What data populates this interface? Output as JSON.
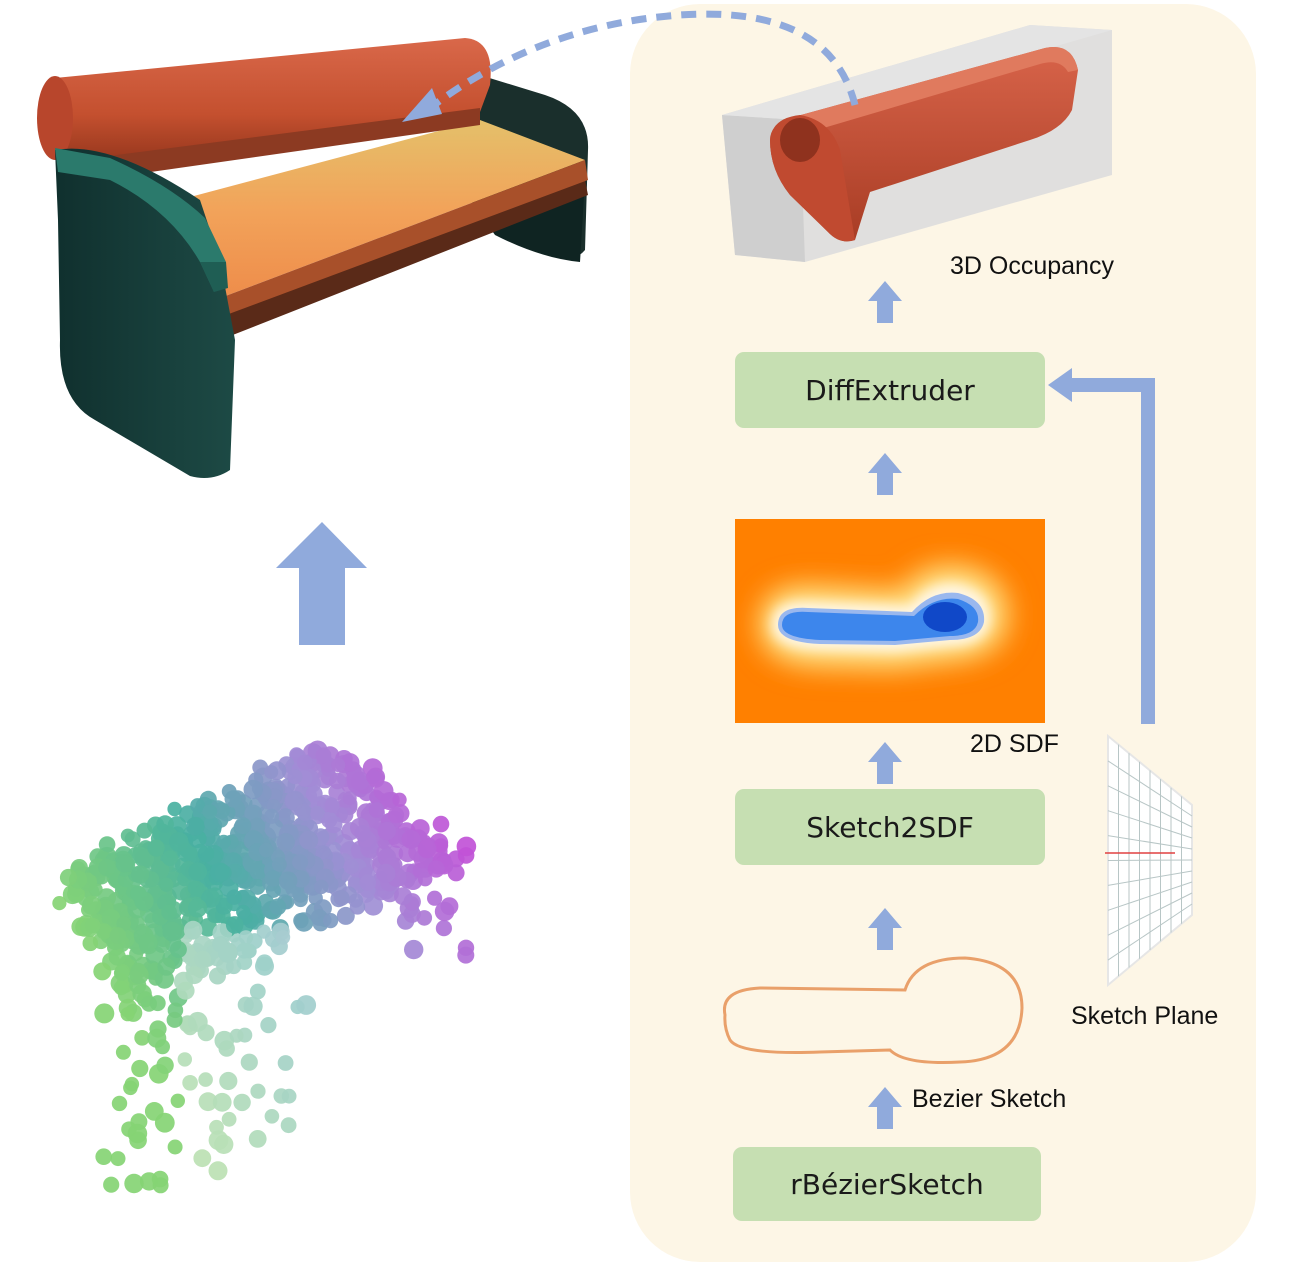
{
  "boxes": {
    "diffextruder": "DiffExtruder",
    "sketch2sdf": "Sketch2SDF",
    "rbeziersketch": "rBézierSketch"
  },
  "labels": {
    "occupancy": "3D Occupancy",
    "sdf": "2D SDF",
    "sketch_plane": "Sketch Plane",
    "bezier_sketch": "Bezier Sketch"
  },
  "colors": {
    "panel_bg": "#fdf6e6",
    "box_fill": "#c6dfb2",
    "arrow": "#90aadc",
    "sketch_curve": "#e9a06a",
    "bench_red": "#c95438",
    "bench_seat": "#f0a060",
    "bench_side": "#173f3c",
    "sdf_outer": "#ff8000",
    "sdf_inner": "#1f6fe0"
  },
  "icons": {
    "bench": "bench-3d-model",
    "point_cloud": "bench-point-cloud",
    "extruded": "extruded-backrest-in-occupancy-grid",
    "sdf_map": "sdf-heatmap",
    "plane": "sketch-plane-grid"
  }
}
